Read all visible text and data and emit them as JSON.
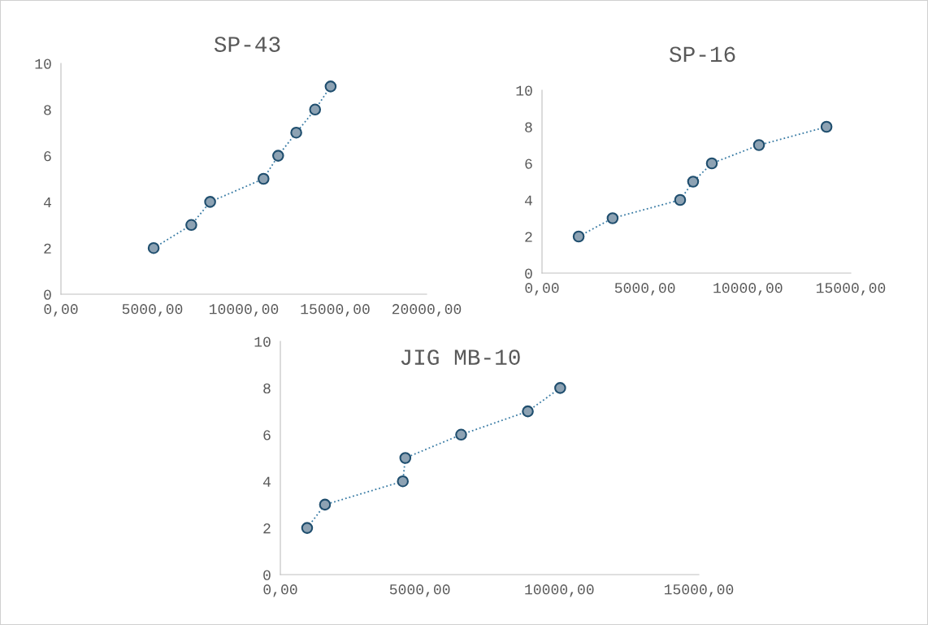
{
  "chart_data": [
    {
      "type": "line",
      "title": "SP-43",
      "x": [
        5070,
        7130,
        8160,
        11080,
        11880,
        12870,
        13900,
        14750
      ],
      "values": [
        2,
        3,
        4,
        5,
        6,
        7,
        8,
        9
      ],
      "color": "#8da2b3",
      "marker": "circle",
      "line_style": "dotted",
      "grid": false,
      "xlim": [
        0,
        20000
      ],
      "xticks": [
        {
          "value": 0,
          "label": "0,00"
        },
        {
          "value": 5000,
          "label": "5000,00"
        },
        {
          "value": 10000,
          "label": "10000,00"
        },
        {
          "value": 15000,
          "label": "15000,00"
        },
        {
          "value": 20000,
          "label": "20000,00"
        }
      ],
      "ylim": [
        0,
        10
      ],
      "yticks": [
        0,
        2,
        4,
        6,
        8,
        10
      ]
    },
    {
      "type": "line",
      "title": "SP-16",
      "x": [
        1780,
        3430,
        6710,
        7340,
        8250,
        10540,
        13820
      ],
      "values": [
        2,
        3,
        4,
        5,
        6,
        7,
        8
      ],
      "color": "#8da2b3",
      "marker": "circle",
      "line_style": "dotted",
      "grid": false,
      "xlim": [
        0,
        15000
      ],
      "xticks": [
        {
          "value": 0,
          "label": "0,00"
        },
        {
          "value": 5000,
          "label": "5000,00"
        },
        {
          "value": 10000,
          "label": "10000,00"
        },
        {
          "value": 15000,
          "label": "15000,00"
        }
      ],
      "ylim": [
        0,
        10
      ],
      "yticks": [
        0,
        2,
        4,
        6,
        8,
        10
      ]
    },
    {
      "type": "line",
      "title": "JIG MB-10",
      "x": [
        960,
        1600,
        4390,
        4480,
        6480,
        8870,
        10030
      ],
      "values": [
        2,
        3,
        4,
        5,
        6,
        7,
        8
      ],
      "color": "#8da2b3",
      "marker": "circle",
      "line_style": "dotted",
      "grid": false,
      "xlim": [
        0,
        15000
      ],
      "xticks": [
        {
          "value": 0,
          "label": "0,00"
        },
        {
          "value": 5000,
          "label": "5000,00"
        },
        {
          "value": 10000,
          "label": "10000,00"
        },
        {
          "value": 15000,
          "label": "15000,00"
        }
      ],
      "ylim": [
        0,
        10
      ],
      "yticks": [
        0,
        2,
        4,
        6,
        8,
        10
      ]
    }
  ]
}
